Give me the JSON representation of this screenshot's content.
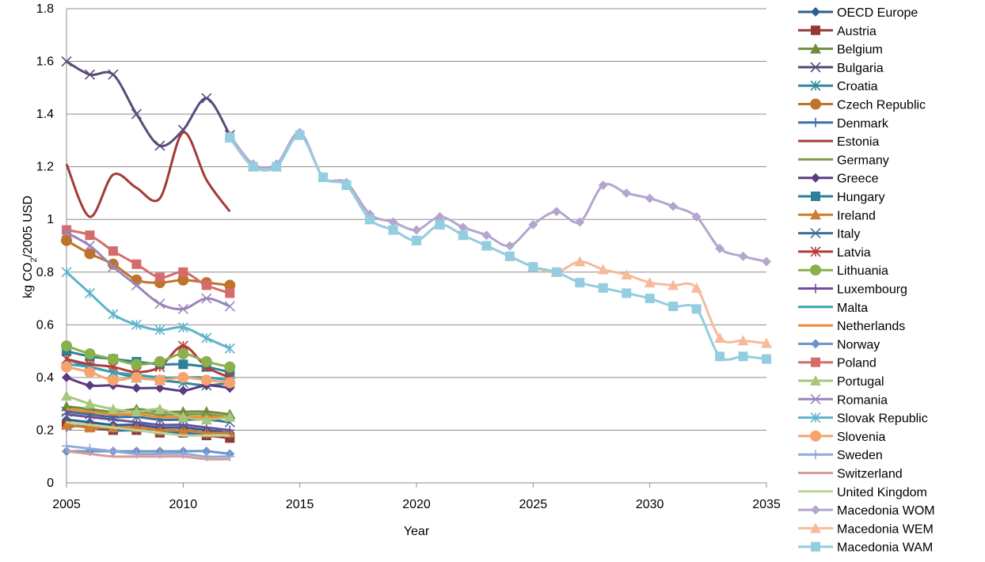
{
  "chart_data": {
    "type": "line",
    "title": "",
    "xlabel": "Year",
    "ylabel": "kg CO₂/2005 USD",
    "ylabel_main": "kg CO",
    "ylabel_sub": "2",
    "ylabel_rest": "/2005 USD",
    "xlim": [
      2005,
      2035
    ],
    "ylim": [
      0,
      1.8
    ],
    "x_ticks": [
      2005,
      2010,
      2015,
      2020,
      2025,
      2030,
      2035
    ],
    "y_ticks": [
      0,
      0.2,
      0.4,
      0.6,
      0.8,
      1,
      1.2,
      1.4,
      1.6,
      1.8
    ],
    "y_tick_labels": [
      "0",
      "0.2",
      "0.4",
      "0.6",
      "0.8",
      "1",
      "1.2",
      "1.4",
      "1.6",
      "1.8"
    ],
    "grid": "horizontal",
    "legend_position": "right",
    "series": [
      {
        "name": "OECD Europe",
        "color": "#2e5d92",
        "marker": "diamond",
        "x": [
          2005,
          2006,
          2007,
          2008,
          2009,
          2010,
          2011,
          2012
        ],
        "values": [
          0.24,
          0.23,
          0.22,
          0.22,
          0.21,
          0.21,
          0.2,
          0.19
        ]
      },
      {
        "name": "Austria",
        "color": "#943735",
        "marker": "square",
        "x": [
          2005,
          2006,
          2007,
          2008,
          2009,
          2010,
          2011,
          2012
        ],
        "values": [
          0.22,
          0.21,
          0.2,
          0.2,
          0.19,
          0.19,
          0.18,
          0.17
        ]
      },
      {
        "name": "Belgium",
        "color": "#6f8c3a",
        "marker": "triangle",
        "x": [
          2005,
          2006,
          2007,
          2008,
          2009,
          2010,
          2011,
          2012
        ],
        "values": [
          0.29,
          0.28,
          0.27,
          0.28,
          0.27,
          0.27,
          0.27,
          0.26
        ]
      },
      {
        "name": "Bulgaria",
        "color": "#5a4a7c",
        "marker": "x",
        "x": [
          2005,
          2006,
          2007,
          2008,
          2009,
          2010,
          2011,
          2012
        ],
        "values": [
          1.6,
          1.55,
          1.55,
          1.4,
          1.28,
          1.34,
          1.46,
          1.32
        ]
      },
      {
        "name": "Croatia",
        "color": "#2f8a99",
        "marker": "star",
        "x": [
          2005,
          2006,
          2007,
          2008,
          2009,
          2010,
          2011,
          2012
        ],
        "values": [
          0.47,
          0.44,
          0.42,
          0.4,
          0.39,
          0.38,
          0.37,
          0.38
        ]
      },
      {
        "name": "Czech Republic",
        "color": "#c0722b",
        "marker": "circle",
        "x": [
          2005,
          2006,
          2007,
          2008,
          2009,
          2010,
          2011,
          2012
        ],
        "values": [
          0.92,
          0.87,
          0.83,
          0.77,
          0.76,
          0.77,
          0.76,
          0.75
        ]
      },
      {
        "name": "Denmark",
        "color": "#3c6ea8",
        "marker": "plus",
        "x": [
          2005,
          2006,
          2007,
          2008,
          2009,
          2010,
          2011,
          2012
        ],
        "values": [
          0.21,
          0.22,
          0.2,
          0.2,
          0.19,
          0.19,
          0.18,
          0.18
        ]
      },
      {
        "name": "Estonia",
        "color": "#a13b39",
        "marker": "none",
        "x": [
          2005,
          2006,
          2007,
          2008,
          2009,
          2010,
          2011,
          2012
        ],
        "values": [
          1.21,
          1.01,
          1.17,
          1.12,
          1.08,
          1.33,
          1.15,
          1.03
        ]
      },
      {
        "name": "Germany",
        "color": "#7f9a48",
        "marker": "none",
        "x": [
          2005,
          2006,
          2007,
          2008,
          2009,
          2010,
          2011,
          2012
        ],
        "values": [
          0.28,
          0.27,
          0.27,
          0.27,
          0.26,
          0.26,
          0.26,
          0.25
        ]
      },
      {
        "name": "Greece",
        "color": "#5b3a82",
        "marker": "diamond",
        "x": [
          2005,
          2006,
          2007,
          2008,
          2009,
          2010,
          2011,
          2012
        ],
        "values": [
          0.4,
          0.37,
          0.37,
          0.36,
          0.36,
          0.35,
          0.37,
          0.36
        ]
      },
      {
        "name": "Hungary",
        "color": "#2c8098",
        "marker": "square",
        "x": [
          2005,
          2006,
          2007,
          2008,
          2009,
          2010,
          2011,
          2012
        ],
        "values": [
          0.5,
          0.48,
          0.47,
          0.46,
          0.45,
          0.45,
          0.44,
          0.42
        ]
      },
      {
        "name": "Ireland",
        "color": "#d07d2d",
        "marker": "triangle",
        "x": [
          2005,
          2006,
          2007,
          2008,
          2009,
          2010,
          2011,
          2012
        ],
        "values": [
          0.22,
          0.21,
          0.21,
          0.21,
          0.2,
          0.2,
          0.19,
          0.19
        ]
      },
      {
        "name": "Italy",
        "color": "#3a6e9c",
        "marker": "x",
        "x": [
          2005,
          2006,
          2007,
          2008,
          2009,
          2010,
          2011,
          2012
        ],
        "values": [
          0.27,
          0.26,
          0.25,
          0.25,
          0.24,
          0.24,
          0.24,
          0.23
        ]
      },
      {
        "name": "Latvia",
        "color": "#b23c3a",
        "marker": "star",
        "x": [
          2005,
          2006,
          2007,
          2008,
          2009,
          2010,
          2011,
          2012
        ],
        "values": [
          0.47,
          0.45,
          0.44,
          0.42,
          0.44,
          0.52,
          0.44,
          0.4
        ]
      },
      {
        "name": "Lithuania",
        "color": "#8ab04c",
        "marker": "circle",
        "x": [
          2005,
          2006,
          2007,
          2008,
          2009,
          2010,
          2011,
          2012
        ],
        "values": [
          0.52,
          0.49,
          0.47,
          0.45,
          0.46,
          0.49,
          0.46,
          0.44
        ]
      },
      {
        "name": "Luxembourg",
        "color": "#6f4f9a",
        "marker": "plus",
        "x": [
          2005,
          2006,
          2007,
          2008,
          2009,
          2010,
          2011,
          2012
        ],
        "values": [
          0.26,
          0.25,
          0.24,
          0.23,
          0.22,
          0.22,
          0.21,
          0.2
        ]
      },
      {
        "name": "Malta",
        "color": "#36a0b5",
        "marker": "none",
        "x": [
          2005,
          2006,
          2007,
          2008,
          2009,
          2010,
          2011,
          2012
        ],
        "values": [
          0.45,
          0.44,
          0.42,
          0.41,
          0.4,
          0.4,
          0.4,
          0.39
        ]
      },
      {
        "name": "Netherlands",
        "color": "#ef8a2e",
        "marker": "none",
        "x": [
          2005,
          2006,
          2007,
          2008,
          2009,
          2010,
          2011,
          2012
        ],
        "values": [
          0.28,
          0.27,
          0.26,
          0.26,
          0.25,
          0.25,
          0.25,
          0.25
        ]
      },
      {
        "name": "Norway",
        "color": "#6e93c9",
        "marker": "diamond",
        "x": [
          2005,
          2006,
          2007,
          2008,
          2009,
          2010,
          2011,
          2012
        ],
        "values": [
          0.12,
          0.12,
          0.12,
          0.12,
          0.12,
          0.12,
          0.12,
          0.11
        ]
      },
      {
        "name": "Poland",
        "color": "#d36c6b",
        "marker": "square",
        "x": [
          2005,
          2006,
          2007,
          2008,
          2009,
          2010,
          2011,
          2012
        ],
        "values": [
          0.96,
          0.94,
          0.88,
          0.83,
          0.78,
          0.8,
          0.75,
          0.72
        ]
      },
      {
        "name": "Portugal",
        "color": "#a7c77a",
        "marker": "triangle",
        "x": [
          2005,
          2006,
          2007,
          2008,
          2009,
          2010,
          2011,
          2012
        ],
        "values": [
          0.33,
          0.3,
          0.28,
          0.27,
          0.28,
          0.25,
          0.24,
          0.25
        ]
      },
      {
        "name": "Romania",
        "color": "#9a84bd",
        "marker": "x",
        "x": [
          2005,
          2006,
          2007,
          2008,
          2009,
          2010,
          2011,
          2012
        ],
        "values": [
          0.95,
          0.9,
          0.82,
          0.75,
          0.68,
          0.66,
          0.7,
          0.67
        ]
      },
      {
        "name": "Slovak Republic",
        "color": "#5fb3cc",
        "marker": "star",
        "x": [
          2005,
          2006,
          2007,
          2008,
          2009,
          2010,
          2011,
          2012
        ],
        "values": [
          0.8,
          0.72,
          0.64,
          0.6,
          0.58,
          0.59,
          0.55,
          0.51
        ]
      },
      {
        "name": "Slovenia",
        "color": "#f6a36e",
        "marker": "circle",
        "x": [
          2005,
          2006,
          2007,
          2008,
          2009,
          2010,
          2011,
          2012
        ],
        "values": [
          0.44,
          0.42,
          0.39,
          0.4,
          0.39,
          0.4,
          0.39,
          0.38
        ]
      },
      {
        "name": "Sweden",
        "color": "#8fa9d6",
        "marker": "plus",
        "x": [
          2005,
          2006,
          2007,
          2008,
          2009,
          2010,
          2011,
          2012
        ],
        "values": [
          0.14,
          0.13,
          0.12,
          0.11,
          0.11,
          0.11,
          0.1,
          0.1
        ]
      },
      {
        "name": "Switzerland",
        "color": "#d69a9a",
        "marker": "none",
        "x": [
          2005,
          2006,
          2007,
          2008,
          2009,
          2010,
          2011,
          2012
        ],
        "values": [
          0.12,
          0.11,
          0.1,
          0.1,
          0.1,
          0.1,
          0.09,
          0.09
        ]
      },
      {
        "name": "United Kingdom",
        "color": "#bcd49a",
        "marker": "none",
        "x": [
          2005,
          2006,
          2007,
          2008,
          2009,
          2010,
          2011,
          2012
        ],
        "values": [
          0.23,
          0.22,
          0.21,
          0.2,
          0.19,
          0.18,
          0.18,
          0.18
        ]
      },
      {
        "name": "Macedonia WOM",
        "color": "#b4a5cf",
        "marker": "diamond",
        "x": [
          2012,
          2013,
          2014,
          2015,
          2016,
          2017,
          2018,
          2019,
          2020,
          2021,
          2022,
          2023,
          2024,
          2025,
          2026,
          2027,
          2028,
          2029,
          2030,
          2031,
          2032,
          2033,
          2034,
          2035
        ],
        "values": [
          1.32,
          1.21,
          1.21,
          1.33,
          1.16,
          1.14,
          1.02,
          0.99,
          0.96,
          1.01,
          0.97,
          0.94,
          0.9,
          0.98,
          1.03,
          0.99,
          1.13,
          1.1,
          1.08,
          1.05,
          1.01,
          0.89,
          0.86,
          0.84
        ]
      },
      {
        "name": "Macedonia WEM",
        "color": "#f7b99c",
        "marker": "triangle",
        "x": [
          2012,
          2013,
          2014,
          2015,
          2016,
          2017,
          2018,
          2019,
          2020,
          2021,
          2022,
          2023,
          2024,
          2025,
          2026,
          2027,
          2028,
          2029,
          2030,
          2031,
          2032,
          2033,
          2034,
          2035
        ],
        "values": [
          1.31,
          1.2,
          1.2,
          1.32,
          1.16,
          1.13,
          1.0,
          0.96,
          0.92,
          0.98,
          0.94,
          0.9,
          0.86,
          0.82,
          0.8,
          0.84,
          0.81,
          0.79,
          0.76,
          0.75,
          0.74,
          0.55,
          0.54,
          0.53
        ]
      },
      {
        "name": "Macedonia WAM",
        "color": "#93cde0",
        "marker": "square",
        "x": [
          2012,
          2013,
          2014,
          2015,
          2016,
          2017,
          2018,
          2019,
          2020,
          2021,
          2022,
          2023,
          2024,
          2025,
          2026,
          2027,
          2028,
          2029,
          2030,
          2031,
          2032,
          2033,
          2034,
          2035
        ],
        "values": [
          1.31,
          1.2,
          1.2,
          1.32,
          1.16,
          1.13,
          1.0,
          0.96,
          0.92,
          0.98,
          0.94,
          0.9,
          0.86,
          0.82,
          0.8,
          0.76,
          0.74,
          0.72,
          0.7,
          0.67,
          0.66,
          0.48,
          0.48,
          0.47
        ]
      }
    ]
  }
}
